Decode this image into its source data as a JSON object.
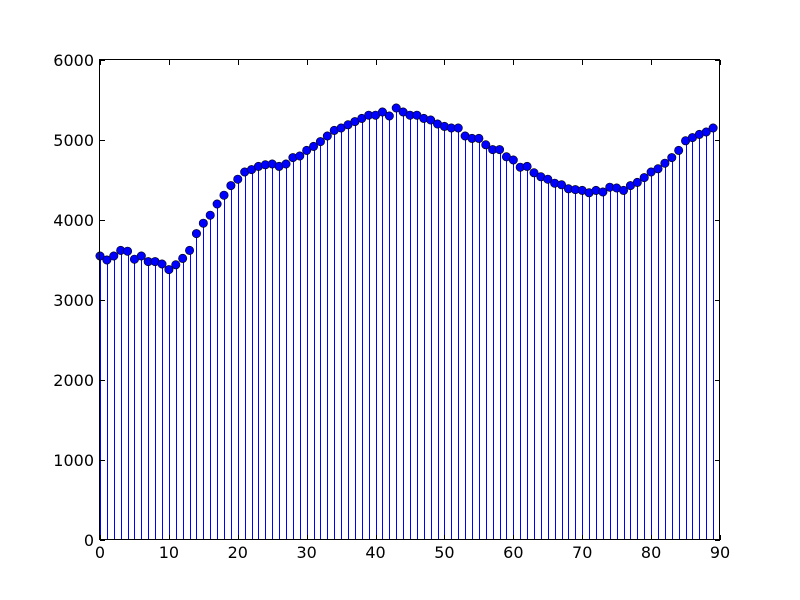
{
  "chart_data": {
    "type": "stem",
    "title": "",
    "xlabel": "",
    "ylabel": "",
    "xlim": [
      0,
      90
    ],
    "ylim": [
      0,
      6000
    ],
    "xticks": [
      0,
      10,
      20,
      30,
      40,
      50,
      60,
      70,
      80,
      90
    ],
    "yticks": [
      0,
      1000,
      2000,
      3000,
      4000,
      5000,
      6000
    ],
    "xtick_labels": [
      "0",
      "10",
      "20",
      "30",
      "40",
      "50",
      "60",
      "70",
      "80",
      "90"
    ],
    "ytick_labels": [
      "0",
      "1000",
      "2000",
      "3000",
      "4000",
      "5000",
      "6000"
    ],
    "grid": false,
    "color": "#0000ff",
    "x": [
      0,
      1,
      2,
      3,
      4,
      5,
      6,
      7,
      8,
      9,
      10,
      11,
      12,
      13,
      14,
      15,
      16,
      17,
      18,
      19,
      20,
      21,
      22,
      23,
      24,
      25,
      26,
      27,
      28,
      29,
      30,
      31,
      32,
      33,
      34,
      35,
      36,
      37,
      38,
      39,
      40,
      41,
      42,
      43,
      44,
      45,
      46,
      47,
      48,
      49,
      50,
      51,
      52,
      53,
      54,
      55,
      56,
      57,
      58,
      59,
      60,
      61,
      62,
      63,
      64,
      65,
      66,
      67,
      68,
      69,
      70,
      71,
      72,
      73,
      74,
      75,
      76,
      77,
      78,
      79,
      80,
      81,
      82,
      83,
      84,
      85,
      86,
      87,
      88,
      89
    ],
    "values": [
      3550,
      3500,
      3550,
      3620,
      3610,
      3510,
      3550,
      3480,
      3480,
      3450,
      3380,
      3440,
      3520,
      3620,
      3830,
      3960,
      4060,
      4200,
      4310,
      4430,
      4510,
      4600,
      4630,
      4670,
      4690,
      4700,
      4670,
      4700,
      4780,
      4800,
      4870,
      4920,
      4980,
      5050,
      5120,
      5150,
      5190,
      5230,
      5270,
      5310,
      5310,
      5350,
      5300,
      5400,
      5350,
      5310,
      5310,
      5270,
      5250,
      5200,
      5170,
      5150,
      5150,
      5050,
      5020,
      5020,
      4940,
      4880,
      4880,
      4790,
      4750,
      4660,
      4670,
      4590,
      4540,
      4510,
      4460,
      4440,
      4390,
      4380,
      4370,
      4340,
      4370,
      4350,
      4410,
      4400,
      4370,
      4430,
      4470,
      4530,
      4600,
      4640,
      4710,
      4780,
      4870,
      4990,
      5030,
      5070,
      5100,
      5150
    ]
  }
}
